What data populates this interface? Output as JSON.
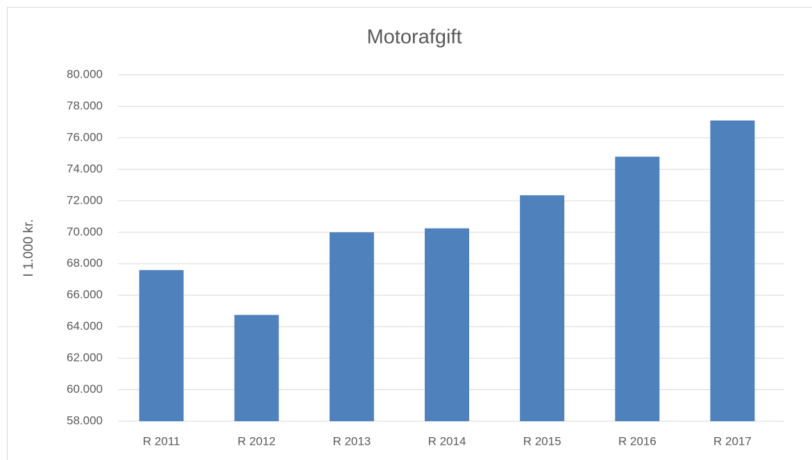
{
  "chart_data": {
    "type": "bar",
    "title": "Motorafgift",
    "y_label": "I 1.000 kr.",
    "categories": [
      "R 2011",
      "R 2012",
      "R 2013",
      "R 2014",
      "R 2015",
      "R 2016",
      "R 2017"
    ],
    "values": [
      67600,
      64750,
      70000,
      70250,
      72350,
      74800,
      77100
    ],
    "color": "#4f81bd",
    "ylim": [
      58000,
      80000
    ],
    "yticks": [
      {
        "value": 58000,
        "label": "58.000"
      },
      {
        "value": 60000,
        "label": "60.000"
      },
      {
        "value": 62000,
        "label": "62.000"
      },
      {
        "value": 64000,
        "label": "64.000"
      },
      {
        "value": 66000,
        "label": "66.000"
      },
      {
        "value": 68000,
        "label": "68.000"
      },
      {
        "value": 70000,
        "label": "70.000"
      },
      {
        "value": 72000,
        "label": "72.000"
      },
      {
        "value": 74000,
        "label": "74.000"
      },
      {
        "value": 76000,
        "label": "76.000"
      },
      {
        "value": 78000,
        "label": "78.000"
      },
      {
        "value": 80000,
        "label": "80.000"
      }
    ],
    "grid": true
  }
}
